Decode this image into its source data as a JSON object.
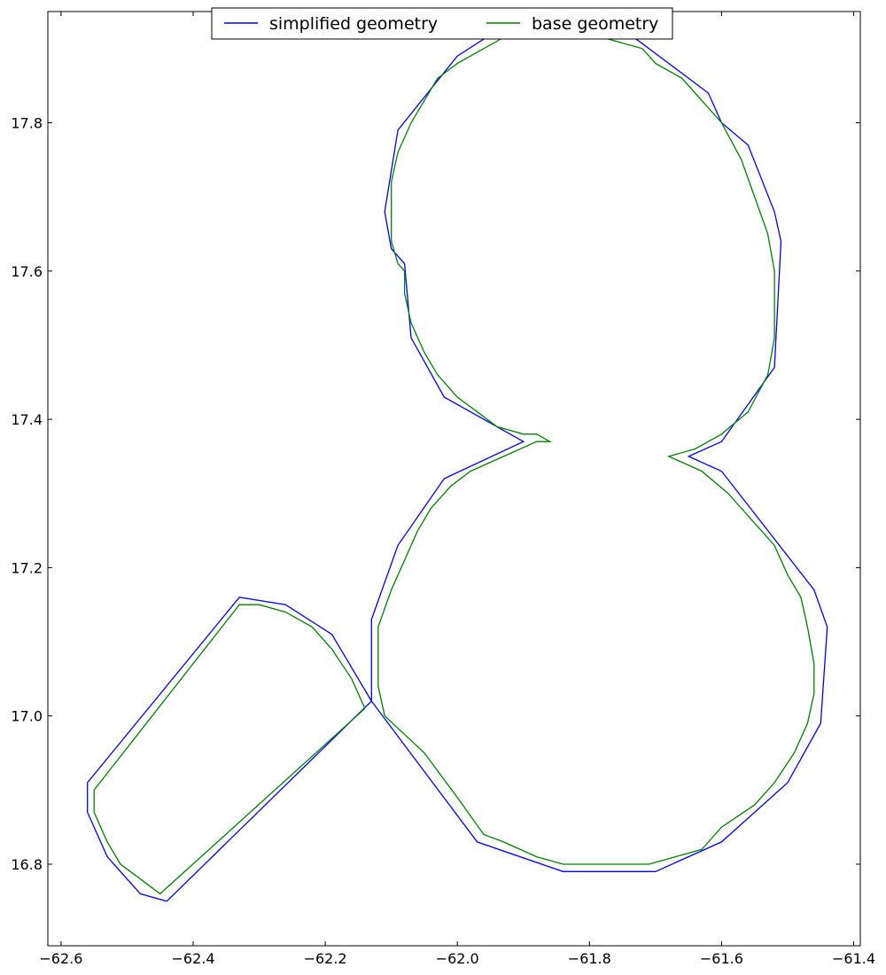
{
  "chart_data": {
    "type": "line",
    "title": "",
    "xlabel": "",
    "ylabel": "",
    "xlim": [
      -62.62,
      -61.39
    ],
    "ylim": [
      16.69,
      17.95
    ],
    "xticks": [
      -62.6,
      -62.4,
      -62.2,
      -62.0,
      -61.8,
      -61.6,
      -61.4
    ],
    "xtick_labels": [
      "−62.6",
      "−62.4",
      "−62.2",
      "−62.0",
      "−61.8",
      "−61.6",
      "−61.4"
    ],
    "yticks": [
      16.8,
      17.0,
      17.2,
      17.4,
      17.6,
      17.8
    ],
    "ytick_labels": [
      "16.8",
      "17.0",
      "17.2",
      "17.4",
      "17.6",
      "17.8"
    ],
    "grid": false,
    "legend": {
      "position": "top-center",
      "columns": 2
    },
    "series": [
      {
        "name": "simplified geometry",
        "color": "#0000ff",
        "rings": [
          [
            [
              -62.13,
              17.02
            ],
            [
              -62.13,
              17.13
            ],
            [
              -62.09,
              17.23
            ],
            [
              -62.02,
              17.32
            ],
            [
              -61.9,
              17.37
            ],
            [
              -62.02,
              17.43
            ],
            [
              -62.07,
              17.51
            ],
            [
              -62.08,
              17.61
            ],
            [
              -62.1,
              17.63
            ],
            [
              -62.11,
              17.68
            ],
            [
              -62.09,
              17.79
            ],
            [
              -62.0,
              17.89
            ],
            [
              -61.93,
              17.93
            ],
            [
              -61.81,
              17.94
            ],
            [
              -61.74,
              17.92
            ],
            [
              -61.62,
              17.84
            ],
            [
              -61.6,
              17.8
            ],
            [
              -61.56,
              17.77
            ],
            [
              -61.52,
              17.68
            ],
            [
              -61.51,
              17.64
            ],
            [
              -61.52,
              17.47
            ],
            [
              -61.6,
              17.37
            ],
            [
              -61.65,
              17.35
            ],
            [
              -61.6,
              17.33
            ],
            [
              -61.46,
              17.17
            ],
            [
              -61.44,
              17.12
            ],
            [
              -61.45,
              16.99
            ],
            [
              -61.5,
              16.91
            ],
            [
              -61.6,
              16.83
            ],
            [
              -61.7,
              16.79
            ],
            [
              -61.84,
              16.79
            ],
            [
              -61.97,
              16.83
            ],
            [
              -62.13,
              17.02
            ]
          ],
          [
            [
              -62.13,
              17.02
            ],
            [
              -62.19,
              17.11
            ],
            [
              -62.26,
              17.15
            ],
            [
              -62.33,
              17.16
            ],
            [
              -62.56,
              16.91
            ],
            [
              -62.56,
              16.87
            ],
            [
              -62.53,
              16.81
            ],
            [
              -62.48,
              16.76
            ],
            [
              -62.44,
              16.75
            ],
            [
              -62.13,
              17.02
            ]
          ]
        ]
      },
      {
        "name": "base geometry",
        "color": "#008000",
        "rings": [
          [
            [
              -62.08,
              17.6
            ],
            [
              -62.09,
              17.61
            ],
            [
              -62.1,
              17.64
            ],
            [
              -62.1,
              17.68
            ],
            [
              -62.1,
              17.72
            ],
            [
              -62.09,
              17.76
            ],
            [
              -62.07,
              17.8
            ],
            [
              -62.05,
              17.83
            ],
            [
              -62.03,
              17.86
            ],
            [
              -62.0,
              17.88
            ],
            [
              -61.96,
              17.9
            ],
            [
              -61.92,
              17.92
            ],
            [
              -61.88,
              17.92
            ],
            [
              -61.84,
              17.93
            ],
            [
              -61.8,
              17.92
            ],
            [
              -61.76,
              17.91
            ],
            [
              -61.72,
              17.9
            ],
            [
              -61.7,
              17.88
            ],
            [
              -61.66,
              17.86
            ],
            [
              -61.63,
              17.83
            ],
            [
              -61.6,
              17.8
            ],
            [
              -61.57,
              17.75
            ],
            [
              -61.55,
              17.7
            ],
            [
              -61.53,
              17.65
            ],
            [
              -61.52,
              17.6
            ],
            [
              -61.52,
              17.57
            ],
            [
              -61.52,
              17.55
            ],
            [
              -61.52,
              17.51
            ],
            [
              -61.53,
              17.46
            ],
            [
              -61.56,
              17.41
            ],
            [
              -61.6,
              17.38
            ],
            [
              -61.64,
              17.36
            ],
            [
              -61.68,
              17.35
            ],
            [
              -61.63,
              17.33
            ],
            [
              -61.59,
              17.3
            ],
            [
              -61.57,
              17.28
            ],
            [
              -61.55,
              17.26
            ],
            [
              -61.52,
              17.23
            ],
            [
              -61.5,
              17.19
            ],
            [
              -61.48,
              17.16
            ],
            [
              -61.47,
              17.12
            ],
            [
              -61.46,
              17.07
            ],
            [
              -61.46,
              17.03
            ],
            [
              -61.47,
              16.99
            ],
            [
              -61.49,
              16.95
            ],
            [
              -61.52,
              16.91
            ],
            [
              -61.55,
              16.88
            ],
            [
              -61.6,
              16.85
            ],
            [
              -61.63,
              16.82
            ],
            [
              -61.67,
              16.81
            ],
            [
              -61.71,
              16.8
            ],
            [
              -61.75,
              16.8
            ],
            [
              -61.8,
              16.8
            ],
            [
              -61.84,
              16.8
            ],
            [
              -61.88,
              16.81
            ],
            [
              -61.93,
              16.83
            ],
            [
              -61.96,
              16.84
            ],
            [
              -62.0,
              16.89
            ],
            [
              -62.05,
              16.95
            ],
            [
              -62.11,
              17.0
            ],
            [
              -62.12,
              17.04
            ],
            [
              -62.12,
              17.08
            ],
            [
              -62.12,
              17.12
            ],
            [
              -62.1,
              17.17
            ],
            [
              -62.08,
              17.21
            ],
            [
              -62.06,
              17.25
            ],
            [
              -62.04,
              17.28
            ],
            [
              -62.01,
              17.31
            ],
            [
              -61.98,
              17.33
            ],
            [
              -61.93,
              17.35
            ],
            [
              -61.88,
              17.37
            ],
            [
              -61.86,
              17.37
            ],
            [
              -61.88,
              17.38
            ],
            [
              -61.9,
              17.38
            ],
            [
              -61.94,
              17.39
            ],
            [
              -61.97,
              17.41
            ],
            [
              -62.0,
              17.43
            ],
            [
              -62.03,
              17.46
            ],
            [
              -62.05,
              17.49
            ],
            [
              -62.07,
              17.53
            ],
            [
              -62.08,
              17.57
            ],
            [
              -62.08,
              17.6
            ]
          ],
          [
            [
              -62.14,
              17.01
            ],
            [
              -62.16,
              17.05
            ],
            [
              -62.19,
              17.09
            ],
            [
              -62.22,
              17.12
            ],
            [
              -62.26,
              17.14
            ],
            [
              -62.3,
              17.15
            ],
            [
              -62.33,
              17.15
            ],
            [
              -62.55,
              16.9
            ],
            [
              -62.55,
              16.87
            ],
            [
              -62.53,
              16.83
            ],
            [
              -62.51,
              16.8
            ],
            [
              -62.48,
              16.78
            ],
            [
              -62.45,
              16.76
            ],
            [
              -62.14,
              17.01
            ]
          ]
        ]
      }
    ]
  }
}
